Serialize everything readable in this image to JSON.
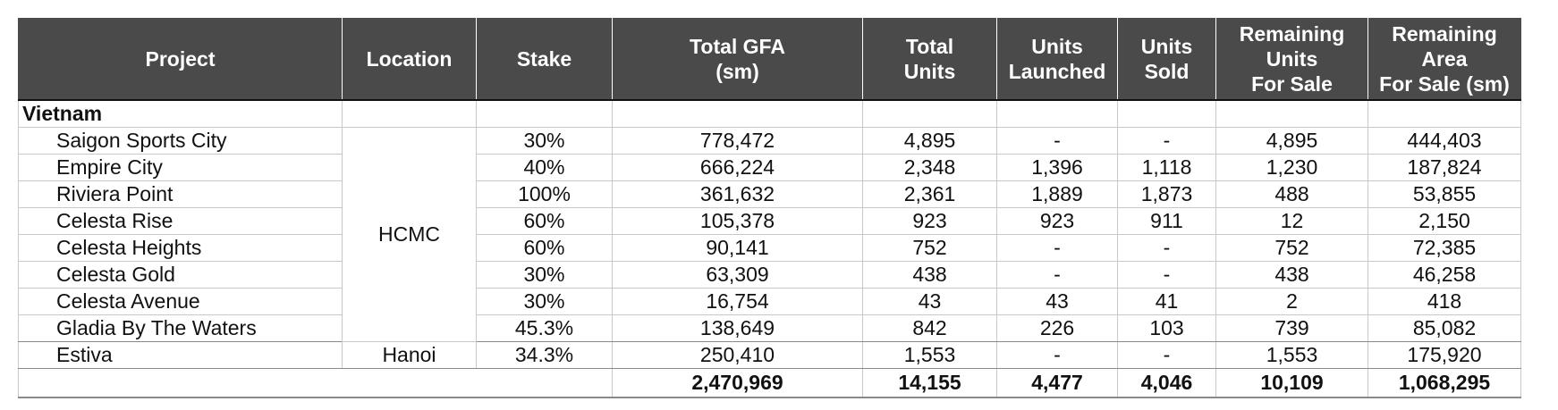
{
  "table": {
    "headers": {
      "project": [
        "Project"
      ],
      "location": [
        "Location"
      ],
      "stake": [
        "Stake"
      ],
      "total_gfa": [
        "Total GFA",
        "(sm)"
      ],
      "total_units": [
        "Total",
        "Units"
      ],
      "units_launched": [
        "Units",
        "Launched"
      ],
      "units_sold": [
        "Units",
        "Sold"
      ],
      "remaining_units": [
        "Remaining",
        "Units",
        "For Sale"
      ],
      "remaining_area": [
        "Remaining",
        "Area",
        "For Sale (sm)"
      ]
    },
    "group_label": "Vietnam",
    "location_hcmc": "HCMC",
    "rows": [
      {
        "project": "Saigon Sports City",
        "location": "",
        "stake": "30%",
        "gfa": "778,472",
        "total_units": "4,895",
        "launched": "-",
        "sold": "-",
        "remaining_units": "4,895",
        "remaining_area": "444,403"
      },
      {
        "project": "Empire City",
        "location": "",
        "stake": "40%",
        "gfa": "666,224",
        "total_units": "2,348",
        "launched": "1,396",
        "sold": "1,118",
        "remaining_units": "1,230",
        "remaining_area": "187,824"
      },
      {
        "project": "Riviera Point",
        "location": "",
        "stake": "100%",
        "gfa": "361,632",
        "total_units": "2,361",
        "launched": "1,889",
        "sold": "1,873",
        "remaining_units": "488",
        "remaining_area": "53,855"
      },
      {
        "project": "Celesta Rise",
        "location": "",
        "stake": "60%",
        "gfa": "105,378",
        "total_units": "923",
        "launched": "923",
        "sold": "911",
        "remaining_units": "12",
        "remaining_area": "2,150"
      },
      {
        "project": "Celesta Heights",
        "location": "",
        "stake": "60%",
        "gfa": "90,141",
        "total_units": "752",
        "launched": "-",
        "sold": "-",
        "remaining_units": "752",
        "remaining_area": "72,385"
      },
      {
        "project": "Celesta Gold",
        "location": "",
        "stake": "30%",
        "gfa": "63,309",
        "total_units": "438",
        "launched": "-",
        "sold": "-",
        "remaining_units": "438",
        "remaining_area": "46,258"
      },
      {
        "project": "Celesta Avenue",
        "location": "",
        "stake": "30%",
        "gfa": "16,754",
        "total_units": "43",
        "launched": "43",
        "sold": "41",
        "remaining_units": "2",
        "remaining_area": "418"
      },
      {
        "project": "Gladia By The Waters",
        "location": "",
        "stake": "45.3%",
        "gfa": "138,649",
        "total_units": "842",
        "launched": "226",
        "sold": "103",
        "remaining_units": "739",
        "remaining_area": "85,082"
      },
      {
        "project": "Estiva",
        "location": "Hanoi",
        "stake": "34.3%",
        "gfa": "250,410",
        "total_units": "1,553",
        "launched": "-",
        "sold": "-",
        "remaining_units": "1,553",
        "remaining_area": "175,920"
      }
    ],
    "totals": {
      "gfa": "2,470,969",
      "total_units": "14,155",
      "launched": "4,477",
      "sold": "4,046",
      "remaining_units": "10,109",
      "remaining_area": "1,068,295"
    }
  }
}
